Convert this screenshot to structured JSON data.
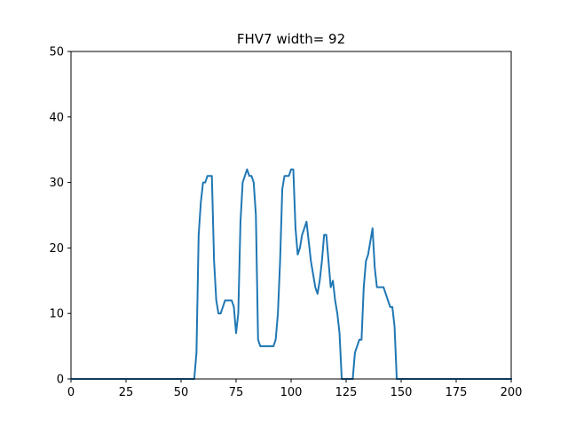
{
  "chart_data": {
    "type": "line",
    "title": "FHV7 width= 92",
    "xlabel": "",
    "ylabel": "",
    "xlim": [
      0,
      200
    ],
    "ylim": [
      0,
      50
    ],
    "xticks": [
      0,
      25,
      50,
      75,
      100,
      125,
      150,
      175,
      200
    ],
    "yticks": [
      0,
      10,
      20,
      30,
      40,
      50
    ],
    "grid": false,
    "series": [
      {
        "color": "#1f77b4",
        "x": [
          0,
          56,
          57,
          58,
          59,
          60,
          61,
          62,
          63,
          64,
          65,
          66,
          67,
          68,
          69,
          70,
          71,
          72,
          73,
          74,
          75,
          76,
          77,
          78,
          79,
          80,
          81,
          82,
          83,
          84,
          85,
          86,
          87,
          88,
          89,
          90,
          91,
          92,
          93,
          94,
          95,
          96,
          97,
          98,
          99,
          100,
          101,
          102,
          103,
          104,
          105,
          106,
          107,
          108,
          109,
          110,
          111,
          112,
          113,
          114,
          115,
          116,
          117,
          118,
          119,
          120,
          121,
          122,
          123,
          124,
          125,
          126,
          127,
          128,
          129,
          130,
          131,
          132,
          133,
          134,
          135,
          136,
          137,
          138,
          139,
          140,
          141,
          142,
          143,
          144,
          145,
          146,
          147,
          148,
          149,
          200
        ],
        "y": [
          0,
          0,
          4,
          22,
          27,
          30,
          30,
          31,
          31,
          31,
          18,
          12,
          10,
          10,
          11,
          12,
          12,
          12,
          12,
          11,
          7,
          10,
          24,
          30,
          31,
          32,
          31,
          31,
          30,
          25,
          6,
          5,
          5,
          5,
          5,
          5,
          5,
          5,
          6,
          10,
          18,
          29,
          31,
          31,
          31,
          32,
          32,
          23,
          19,
          20,
          22,
          23,
          24,
          21,
          18,
          16,
          14,
          13,
          15,
          18,
          22,
          22,
          18,
          14,
          15,
          12,
          10,
          7,
          0,
          0,
          0,
          0,
          0,
          0,
          4,
          5,
          6,
          6,
          14,
          18,
          19,
          21,
          23,
          17,
          14,
          14,
          14,
          14,
          13,
          12,
          11,
          11,
          8,
          0,
          0,
          0
        ]
      }
    ]
  }
}
